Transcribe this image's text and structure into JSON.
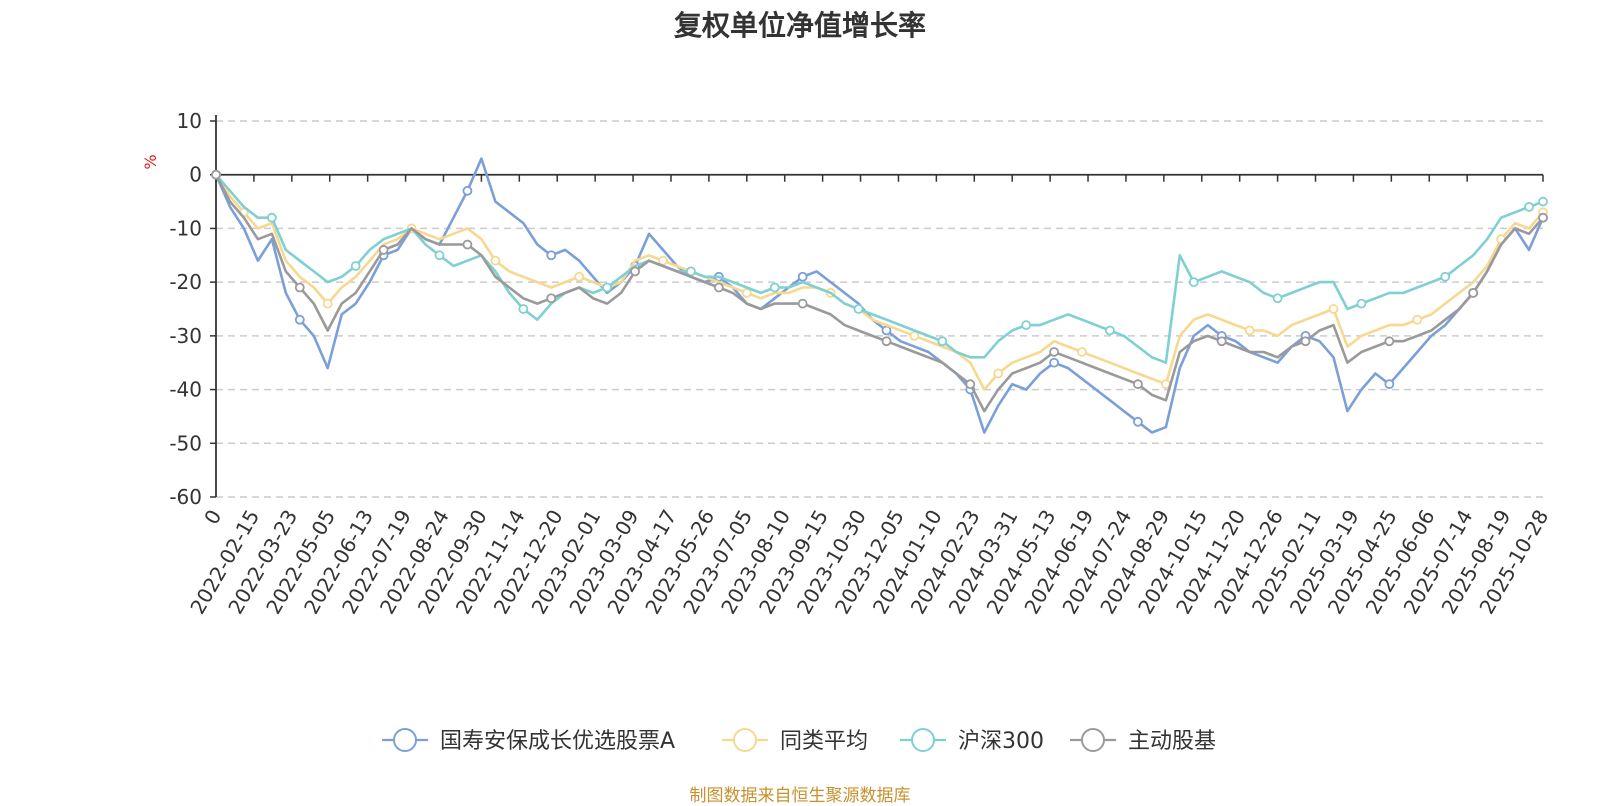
{
  "chart_data": {
    "type": "line",
    "title": "复权单位净值增长率",
    "ylabel": "%",
    "xlabel": "",
    "ylim": [
      -60,
      10
    ],
    "yticks": [
      10,
      0,
      -10,
      -20,
      -30,
      -40,
      -50,
      -60
    ],
    "xticks": [
      "0",
      "2022-02-15",
      "2022-03-23",
      "2022-05-05",
      "2022-06-13",
      "2022-07-19",
      "2022-08-24",
      "2022-09-30",
      "2022-11-14",
      "2022-12-20",
      "2023-02-01",
      "2023-03-09",
      "2023-04-17",
      "2023-05-26",
      "2023-07-05",
      "2023-08-10",
      "2023-09-15",
      "2023-10-30",
      "2023-12-05",
      "2024-01-10",
      "2024-02-23",
      "2024-03-31",
      "2024-05-13",
      "2024-06-19",
      "2024-07-24",
      "2024-08-29",
      "2024-10-15",
      "2024-11-20",
      "2024-12-26",
      "2025-02-11",
      "2025-03-19",
      "2025-04-25",
      "2025-06-06",
      "2025-07-14",
      "2025-08-19",
      "2025-10-28"
    ],
    "grid": true,
    "legend_position": "bottom",
    "series": [
      {
        "name": "国寿安保成长优选股票A",
        "color": "#7b9fd8",
        "values": [
          0,
          -6,
          -10,
          -16,
          -12,
          -22,
          -27,
          -30,
          -36,
          -26,
          -24,
          -20,
          -15,
          -14,
          -10,
          -12,
          -13,
          -8,
          -3,
          3,
          -5,
          -7,
          -9,
          -13,
          -15,
          -14,
          -16,
          -19,
          -22,
          -20,
          -17,
          -11,
          -14,
          -17,
          -19,
          -20,
          -19,
          -21,
          -24,
          -25,
          -23,
          -21,
          -19,
          -18,
          -20,
          -22,
          -24,
          -27,
          -29,
          -31,
          -32,
          -33,
          -35,
          -37,
          -40,
          -48,
          -43,
          -39,
          -40,
          -37,
          -35,
          -36,
          -38,
          -40,
          -42,
          -44,
          -46,
          -48,
          -47,
          -36,
          -30,
          -28,
          -30,
          -31,
          -33,
          -34,
          -35,
          -32,
          -30,
          -31,
          -34,
          -44,
          -40,
          -37,
          -39,
          -36,
          -33,
          -30,
          -28,
          -25,
          -22,
          -18,
          -13,
          -10,
          -14,
          -8
        ]
      },
      {
        "name": "同类平均",
        "color": "#f7d88f",
        "values": [
          0,
          -4,
          -7,
          -10,
          -9,
          -16,
          -19,
          -21,
          -24,
          -21,
          -19,
          -16,
          -13,
          -12,
          -10,
          -11,
          -12,
          -11,
          -10,
          -12,
          -16,
          -18,
          -19,
          -20,
          -21,
          -20,
          -19,
          -20,
          -21,
          -20,
          -16,
          -15,
          -16,
          -17,
          -18,
          -19,
          -20,
          -21,
          -22,
          -23,
          -22,
          -22,
          -21,
          -21,
          -22,
          -24,
          -25,
          -27,
          -28,
          -29,
          -30,
          -31,
          -32,
          -33,
          -35,
          -40,
          -37,
          -35,
          -34,
          -33,
          -31,
          -32,
          -33,
          -34,
          -35,
          -36,
          -37,
          -38,
          -39,
          -30,
          -27,
          -26,
          -27,
          -28,
          -29,
          -29,
          -30,
          -28,
          -27,
          -26,
          -25,
          -32,
          -30,
          -29,
          -28,
          -28,
          -27,
          -26,
          -24,
          -22,
          -20,
          -17,
          -12,
          -9,
          -10,
          -7
        ]
      },
      {
        "name": "沪深300",
        "color": "#7fd0d2",
        "values": [
          0,
          -3,
          -6,
          -8,
          -8,
          -14,
          -16,
          -18,
          -20,
          -19,
          -17,
          -14,
          -12,
          -11,
          -10,
          -13,
          -15,
          -17,
          -16,
          -15,
          -18,
          -22,
          -25,
          -27,
          -24,
          -22,
          -21,
          -22,
          -21,
          -19,
          -17,
          -16,
          -17,
          -18,
          -18,
          -19,
          -19,
          -20,
          -21,
          -22,
          -21,
          -21,
          -20,
          -21,
          -22,
          -24,
          -25,
          -26,
          -27,
          -28,
          -29,
          -30,
          -31,
          -33,
          -34,
          -34,
          -31,
          -29,
          -28,
          -28,
          -27,
          -26,
          -27,
          -28,
          -29,
          -30,
          -32,
          -34,
          -35,
          -15,
          -20,
          -19,
          -18,
          -19,
          -20,
          -22,
          -23,
          -22,
          -21,
          -20,
          -20,
          -25,
          -24,
          -23,
          -22,
          -22,
          -21,
          -20,
          -19,
          -17,
          -15,
          -12,
          -8,
          -7,
          -6,
          -5
        ]
      },
      {
        "name": "主动股基",
        "color": "#9a9a9a",
        "values": [
          0,
          -5,
          -8,
          -12,
          -11,
          -18,
          -21,
          -24,
          -29,
          -24,
          -22,
          -18,
          -14,
          -13,
          -10,
          -12,
          -13,
          -13,
          -13,
          -15,
          -19,
          -21,
          -23,
          -24,
          -23,
          -22,
          -21,
          -23,
          -24,
          -22,
          -18,
          -16,
          -17,
          -18,
          -19,
          -20,
          -21,
          -22,
          -24,
          -25,
          -24,
          -24,
          -24,
          -25,
          -26,
          -28,
          -29,
          -30,
          -31,
          -32,
          -33,
          -34,
          -35,
          -37,
          -39,
          -44,
          -40,
          -37,
          -36,
          -35,
          -33,
          -34,
          -35,
          -36,
          -37,
          -38,
          -39,
          -41,
          -42,
          -33,
          -31,
          -30,
          -31,
          -32,
          -33,
          -33,
          -34,
          -32,
          -31,
          -29,
          -28,
          -35,
          -33,
          -32,
          -31,
          -31,
          -30,
          -29,
          -27,
          -25,
          -22,
          -18,
          -13,
          -10,
          -11,
          -8
        ]
      }
    ]
  },
  "footer": {
    "source": "制图数据来自恒生聚源数据库"
  }
}
